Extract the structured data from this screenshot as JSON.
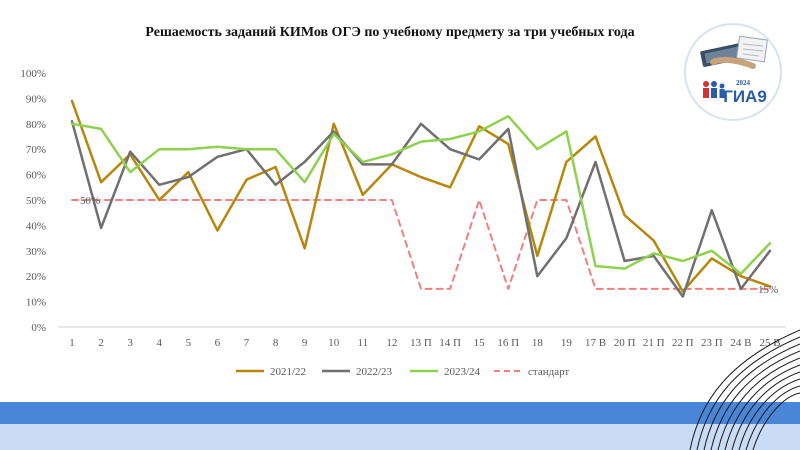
{
  "chart_data": {
    "type": "line",
    "title": "Решаемость заданий КИМов ОГЭ по учебному предмету за три учебных года",
    "categories": [
      "1",
      "2",
      "3",
      "4",
      "5",
      "6",
      "7",
      "8",
      "9",
      "10",
      "11",
      "12",
      "13 П",
      "14 П",
      "15",
      "16 П",
      "18",
      "19",
      "17 В",
      "20 П",
      "21 П",
      "22 П",
      "23 П",
      "24 В",
      "25 В"
    ],
    "y_ticks": [
      "0%",
      "10%",
      "20%",
      "30%",
      "40%",
      "50%",
      "60%",
      "70%",
      "80%",
      "90%",
      "100%"
    ],
    "ylim": [
      0,
      100
    ],
    "xlabel": "",
    "ylabel": "",
    "grid": false,
    "legend_position": "bottom",
    "series": [
      {
        "name": "2021/22",
        "color": "#b8860b",
        "dashed": false,
        "values": [
          89,
          57,
          68,
          50,
          61,
          38,
          58,
          63,
          31,
          80,
          52,
          64,
          59,
          55,
          79,
          72,
          28,
          65,
          75,
          44,
          34,
          14,
          27,
          20,
          16
        ]
      },
      {
        "name": "2022/23",
        "color": "#707070",
        "dashed": false,
        "values": [
          81,
          39,
          69,
          56,
          59,
          67,
          70,
          56,
          65,
          77,
          64,
          64,
          80,
          70,
          66,
          78,
          20,
          35,
          65,
          26,
          28,
          12,
          46,
          15,
          30
        ]
      },
      {
        "name": "2023/24",
        "color": "#8fd14f",
        "dashed": false,
        "values": [
          80,
          78,
          61,
          70,
          70,
          71,
          70,
          70,
          57,
          76,
          65,
          68,
          73,
          74,
          77,
          83,
          70,
          77,
          24,
          23,
          29,
          26,
          30,
          21,
          33
        ]
      },
      {
        "name": "стандарт",
        "color": "#f08080",
        "dashed": true,
        "values": [
          50,
          50,
          50,
          50,
          50,
          50,
          50,
          50,
          50,
          50,
          50,
          50,
          15,
          15,
          50,
          15,
          50,
          50,
          15,
          15,
          15,
          15,
          15,
          15,
          15
        ]
      }
    ],
    "annotations": [
      {
        "text": "50%",
        "category_index": 0,
        "value": 50
      },
      {
        "text": "15%",
        "category_index": 24,
        "value": 15
      }
    ]
  },
  "logo": {
    "year": "2024",
    "label": "ГИА9"
  }
}
